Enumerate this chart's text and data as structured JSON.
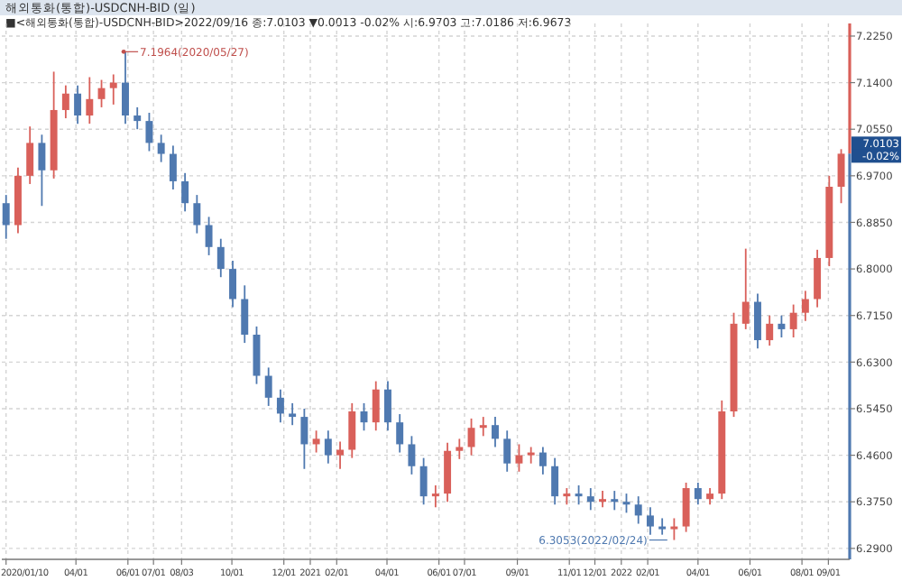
{
  "chart_data": {
    "type": "candlestick",
    "title": "해외통화(통합)-USDCNH-BID (일)",
    "subtitle": "■<해외통화(통합)-USDCNH-BID>2022/09/16 종:7.0103 ▼0.0013 -0.02% 시:6.9703 고:7.0186 저:6.9673",
    "x": [
      "2020-01-10",
      "2020-01-24",
      "2020-02-07",
      "2020-02-21",
      "2020-03-06",
      "2020-03-20",
      "2020-04-03",
      "2020-04-17",
      "2020-05-01",
      "2020-05-15",
      "2020-05-29",
      "2020-06-12",
      "2020-06-26",
      "2020-07-10",
      "2020-07-24",
      "2020-08-07",
      "2020-08-21",
      "2020-09-04",
      "2020-09-18",
      "2020-10-02",
      "2020-10-16",
      "2020-10-30",
      "2020-11-13",
      "2020-11-27",
      "2020-12-11",
      "2020-12-25",
      "2021-01-08",
      "2021-01-22",
      "2021-02-05",
      "2021-02-19",
      "2021-03-05",
      "2021-03-19",
      "2021-04-02",
      "2021-04-16",
      "2021-04-30",
      "2021-05-14",
      "2021-05-28",
      "2021-06-11",
      "2021-06-25",
      "2021-07-09",
      "2021-07-23",
      "2021-08-06",
      "2021-08-20",
      "2021-09-03",
      "2021-09-17",
      "2021-10-01",
      "2021-10-15",
      "2021-10-29",
      "2021-11-12",
      "2021-11-26",
      "2021-12-10",
      "2021-12-24",
      "2022-01-07",
      "2022-01-21",
      "2022-02-04",
      "2022-02-18",
      "2022-03-04",
      "2022-03-18",
      "2022-04-01",
      "2022-04-15",
      "2022-04-29",
      "2022-05-13",
      "2022-05-27",
      "2022-06-10",
      "2022-06-24",
      "2022-07-08",
      "2022-07-22",
      "2022-08-05",
      "2022-08-19",
      "2022-09-02",
      "2022-09-16"
    ],
    "ohlc": [
      [
        6.92,
        6.935,
        6.855,
        6.88
      ],
      [
        6.88,
        6.985,
        6.865,
        6.97
      ],
      [
        6.97,
        7.06,
        6.955,
        7.03
      ],
      [
        7.03,
        7.045,
        6.915,
        6.98
      ],
      [
        6.98,
        7.16,
        6.965,
        7.09
      ],
      [
        7.09,
        7.135,
        7.075,
        7.12
      ],
      [
        7.12,
        7.135,
        7.065,
        7.08
      ],
      [
        7.08,
        7.15,
        7.065,
        7.11
      ],
      [
        7.11,
        7.145,
        7.095,
        7.13
      ],
      [
        7.13,
        7.155,
        7.1,
        7.14
      ],
      [
        7.14,
        7.1964,
        7.065,
        7.08
      ],
      [
        7.08,
        7.095,
        7.055,
        7.07
      ],
      [
        7.07,
        7.085,
        7.015,
        7.03
      ],
      [
        7.03,
        7.045,
        6.995,
        7.01
      ],
      [
        7.01,
        7.025,
        6.945,
        6.96
      ],
      [
        6.96,
        6.975,
        6.905,
        6.92
      ],
      [
        6.92,
        6.935,
        6.865,
        6.88
      ],
      [
        6.88,
        6.895,
        6.825,
        6.84
      ],
      [
        6.84,
        6.855,
        6.785,
        6.8
      ],
      [
        6.8,
        6.815,
        6.73,
        6.745
      ],
      [
        6.745,
        6.77,
        6.665,
        6.68
      ],
      [
        6.68,
        6.695,
        6.59,
        6.605
      ],
      [
        6.605,
        6.62,
        6.55,
        6.565
      ],
      [
        6.565,
        6.58,
        6.52,
        6.536
      ],
      [
        6.536,
        6.555,
        6.515,
        6.53
      ],
      [
        6.53,
        6.545,
        6.435,
        6.48
      ],
      [
        6.48,
        6.505,
        6.465,
        6.49
      ],
      [
        6.49,
        6.505,
        6.445,
        6.46
      ],
      [
        6.46,
        6.485,
        6.435,
        6.47
      ],
      [
        6.47,
        6.555,
        6.455,
        6.54
      ],
      [
        6.54,
        6.555,
        6.505,
        6.52
      ],
      [
        6.52,
        6.595,
        6.505,
        6.58
      ],
      [
        6.58,
        6.595,
        6.505,
        6.52
      ],
      [
        6.52,
        6.535,
        6.465,
        6.48
      ],
      [
        6.48,
        6.495,
        6.425,
        6.44
      ],
      [
        6.44,
        6.455,
        6.37,
        6.385
      ],
      [
        6.385,
        6.405,
        6.365,
        6.39
      ],
      [
        6.39,
        6.483,
        6.375,
        6.468
      ],
      [
        6.468,
        6.49,
        6.453,
        6.475
      ],
      [
        6.475,
        6.527,
        6.46,
        6.51
      ],
      [
        6.51,
        6.53,
        6.495,
        6.515
      ],
      [
        6.515,
        6.53,
        6.475,
        6.49
      ],
      [
        6.49,
        6.505,
        6.43,
        6.445
      ],
      [
        6.445,
        6.48,
        6.43,
        6.46
      ],
      [
        6.46,
        6.475,
        6.445,
        6.465
      ],
      [
        6.465,
        6.475,
        6.425,
        6.44
      ],
      [
        6.44,
        6.455,
        6.37,
        6.385
      ],
      [
        6.385,
        6.4,
        6.37,
        6.39
      ],
      [
        6.39,
        6.405,
        6.37,
        6.385
      ],
      [
        6.385,
        6.4,
        6.36,
        6.375
      ],
      [
        6.375,
        6.395,
        6.365,
        6.38
      ],
      [
        6.38,
        6.395,
        6.36,
        6.375
      ],
      [
        6.375,
        6.39,
        6.355,
        6.37
      ],
      [
        6.37,
        6.385,
        6.335,
        6.35
      ],
      [
        6.35,
        6.365,
        6.315,
        6.33
      ],
      [
        6.33,
        6.345,
        6.315,
        6.325
      ],
      [
        6.325,
        6.345,
        6.3053,
        6.33
      ],
      [
        6.33,
        6.41,
        6.32,
        6.4
      ],
      [
        6.4,
        6.41,
        6.37,
        6.38
      ],
      [
        6.38,
        6.4,
        6.37,
        6.39
      ],
      [
        6.39,
        6.56,
        6.38,
        6.54
      ],
      [
        6.54,
        6.72,
        6.53,
        6.7
      ],
      [
        6.7,
        6.837,
        6.69,
        6.74
      ],
      [
        6.74,
        6.755,
        6.655,
        6.67
      ],
      [
        6.67,
        6.715,
        6.66,
        6.7
      ],
      [
        6.7,
        6.715,
        6.675,
        6.69
      ],
      [
        6.69,
        6.735,
        6.675,
        6.72
      ],
      [
        6.72,
        6.76,
        6.705,
        6.745
      ],
      [
        6.745,
        6.835,
        6.73,
        6.82
      ],
      [
        6.82,
        6.97,
        6.805,
        6.95
      ],
      [
        6.95,
        7.0186,
        6.92,
        7.0103
      ]
    ],
    "xlim": [
      "2020-01-05",
      "2022-09-26"
    ],
    "xticks": [
      {
        "value": "2020-01-10",
        "label": "2020/01/10"
      },
      {
        "value": "2020-04-01",
        "label": "04/01"
      },
      {
        "value": "2020-06-01",
        "label": "06/01"
      },
      {
        "value": "2020-07-01",
        "label": "07/01"
      },
      {
        "value": "2020-08-03",
        "label": "08/03"
      },
      {
        "value": "2020-10-01",
        "label": "10/01"
      },
      {
        "value": "2020-12-01",
        "label": "12/01"
      },
      {
        "value": "2021-01-01",
        "label": "2021"
      },
      {
        "value": "2021-02-01",
        "label": "02/01"
      },
      {
        "value": "2021-04-01",
        "label": "04/01"
      },
      {
        "value": "2021-06-01",
        "label": "06/01"
      },
      {
        "value": "2021-07-01",
        "label": "07/01"
      },
      {
        "value": "2021-09-01",
        "label": "09/01"
      },
      {
        "value": "2021-11-01",
        "label": "11/01"
      },
      {
        "value": "2021-12-01",
        "label": "12/01"
      },
      {
        "value": "2022-01-01",
        "label": "2022"
      },
      {
        "value": "2022-02-01",
        "label": "02/01"
      },
      {
        "value": "2022-04-01",
        "label": "04/01"
      },
      {
        "value": "2022-06-01",
        "label": "06/01"
      },
      {
        "value": "2022-08-01",
        "label": "08/01"
      },
      {
        "value": "2022-09-01",
        "label": "09/01"
      }
    ],
    "ylim": [
      6.27,
      7.248
    ],
    "yticks": [
      {
        "value": 6.29,
        "label": "6.2900"
      },
      {
        "value": 6.375,
        "label": "6.3750"
      },
      {
        "value": 6.46,
        "label": "6.4600"
      },
      {
        "value": 6.545,
        "label": "6.5450"
      },
      {
        "value": 6.63,
        "label": "6.6300"
      },
      {
        "value": 6.715,
        "label": "6.7150"
      },
      {
        "value": 6.8,
        "label": "6.8000"
      },
      {
        "value": 6.885,
        "label": "6.8850"
      },
      {
        "value": 6.97,
        "label": "6.9700"
      },
      {
        "value": 7.055,
        "label": "7.0550"
      },
      {
        "value": 7.14,
        "label": "7.1400"
      },
      {
        "value": 7.225,
        "label": "7.2250"
      }
    ],
    "grid": true,
    "annotations": [
      {
        "text": "7.1964(2020/05/27)",
        "x": "2020-05-27",
        "y": 7.1964
      },
      {
        "text": "6.3053(2022/02/24)",
        "x": "2022-02-24",
        "y": 6.3053
      },
      {
        "text": "7.0103",
        "x": "2022-09-16",
        "y": 7.0103
      },
      {
        "text": "-0.02%",
        "x": "2022-09-16",
        "y": 7.0103
      }
    ]
  }
}
